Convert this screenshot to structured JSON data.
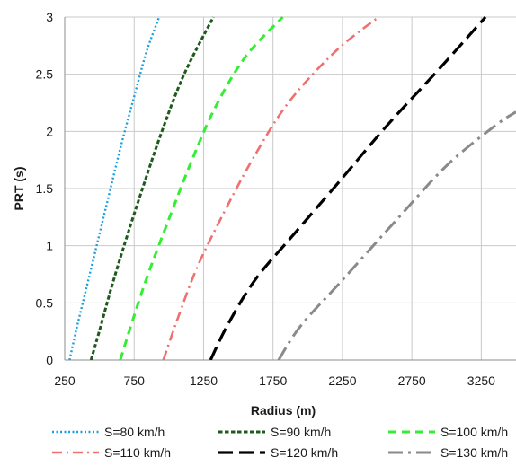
{
  "chart_data": {
    "type": "line",
    "xlabel": "Radius (m)",
    "ylabel": "PRT (s)",
    "xlim": [
      250,
      3500
    ],
    "ylim": [
      0,
      3
    ],
    "xticks": [
      250,
      750,
      1250,
      1750,
      2250,
      2750,
      3250
    ],
    "yticks": [
      0,
      0.5,
      1,
      1.5,
      2,
      2.5,
      3
    ],
    "ytick_labels": [
      "0",
      "0.5",
      "1",
      "1.5",
      "2",
      "2.5",
      "3"
    ],
    "grid": true,
    "legend_position": "bottom",
    "series": [
      {
        "name": "S=80 km/h",
        "color": "#1a9fe0",
        "dash": "dot",
        "x": [
          285,
          340,
          400,
          470,
          550,
          650,
          760,
          840,
          930
        ],
        "y": [
          0,
          0.3,
          0.6,
          0.95,
          1.35,
          1.85,
          2.35,
          2.7,
          3.0
        ]
      },
      {
        "name": "S=90 km/h",
        "color": "#1e5a1e",
        "dash": "short-dash",
        "x": [
          440,
          510,
          590,
          690,
          810,
          950,
          1110,
          1320
        ],
        "y": [
          0,
          0.3,
          0.65,
          1.05,
          1.5,
          2.0,
          2.5,
          3.0
        ]
      },
      {
        "name": "S=100 km/h",
        "color": "#33ee33",
        "dash": "dash",
        "x": [
          650,
          740,
          850,
          990,
          1150,
          1330,
          1550,
          1820
        ],
        "y": [
          0,
          0.35,
          0.75,
          1.2,
          1.7,
          2.2,
          2.65,
          3.0
        ]
      },
      {
        "name": "S=110 km/h",
        "color": "#f07070",
        "dash": "dash-dot",
        "x": [
          960,
          1060,
          1200,
          1380,
          1600,
          1860,
          2200,
          2510
        ],
        "y": [
          0,
          0.35,
          0.8,
          1.25,
          1.75,
          2.25,
          2.7,
          3.0
        ]
      },
      {
        "name": "S=120 km/h",
        "color": "#000000",
        "dash": "long-dash",
        "x": [
          1300,
          1420,
          1620,
          1900,
          2220,
          2570,
          2950,
          3280
        ],
        "y": [
          0,
          0.3,
          0.7,
          1.1,
          1.55,
          2.05,
          2.55,
          3.0
        ]
      },
      {
        "name": "S=130 km/h",
        "color": "#8a8a8a",
        "dash": "long-dash-dot",
        "x": [
          1790,
          1950,
          2250,
          2620,
          3000,
          3350,
          3500
        ],
        "y": [
          0,
          0.3,
          0.7,
          1.2,
          1.7,
          2.05,
          2.17
        ]
      }
    ]
  }
}
